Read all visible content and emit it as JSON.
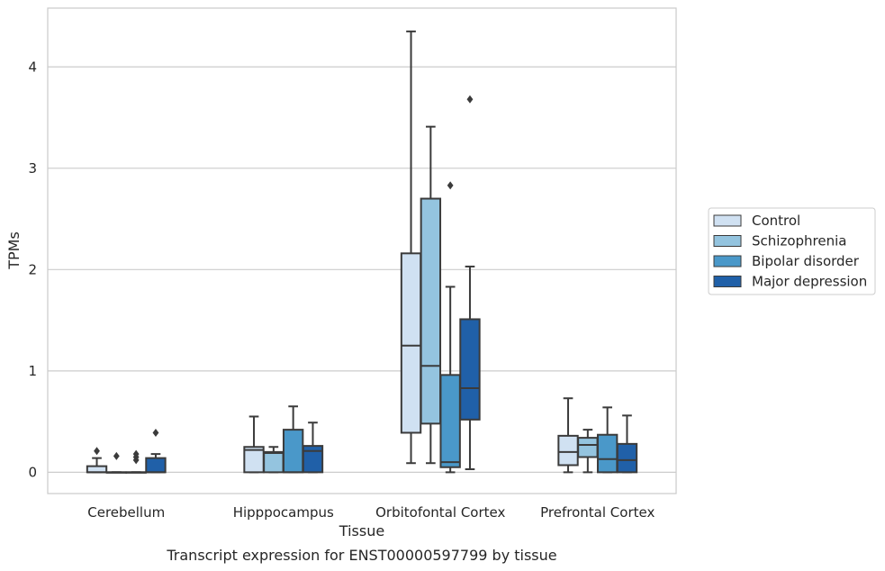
{
  "chart_data": {
    "type": "box",
    "caption": "Transcript expression for ENST00000597799 by tissue",
    "xlabel": "Tissue",
    "ylabel": "TPMs",
    "ylim": [
      -0.21,
      4.58
    ],
    "yticks": [
      0,
      1,
      2,
      3,
      4
    ],
    "grid": "horizontal",
    "legend_position": "right",
    "categories": [
      "Cerebellum",
      "Hipppocampus",
      "Orbitofontal Cortex",
      "Prefrontal Cortex"
    ],
    "series": [
      {
        "name": "Control",
        "color": "#d0e1f2",
        "boxes": [
          {
            "whislo": 0.0,
            "q1": 0.0,
            "med": 0.0,
            "q3": 0.06,
            "whishi": 0.14,
            "fliers": [
              0.21
            ]
          },
          {
            "whislo": 0.0,
            "q1": 0.0,
            "med": 0.22,
            "q3": 0.25,
            "whishi": 0.55,
            "fliers": []
          },
          {
            "whislo": 0.09,
            "q1": 0.39,
            "med": 1.25,
            "q3": 2.16,
            "whishi": 4.35,
            "fliers": []
          },
          {
            "whislo": 0.0,
            "q1": 0.07,
            "med": 0.2,
            "q3": 0.36,
            "whishi": 0.73,
            "fliers": []
          }
        ]
      },
      {
        "name": "Schizophrenia",
        "color": "#94c4df",
        "boxes": [
          {
            "whislo": 0.0,
            "q1": 0.0,
            "med": 0.0,
            "q3": 0.0,
            "whishi": 0.0,
            "fliers": [
              0.16
            ]
          },
          {
            "whislo": 0.0,
            "q1": 0.0,
            "med": 0.19,
            "q3": 0.2,
            "whishi": 0.25,
            "fliers": []
          },
          {
            "whislo": 0.09,
            "q1": 0.48,
            "med": 1.05,
            "q3": 2.7,
            "whishi": 3.41,
            "fliers": []
          },
          {
            "whislo": 0.0,
            "q1": 0.15,
            "med": 0.27,
            "q3": 0.34,
            "whishi": 0.42,
            "fliers": []
          }
        ]
      },
      {
        "name": "Bipolar disorder",
        "color": "#4a98c9",
        "boxes": [
          {
            "whislo": 0.0,
            "q1": 0.0,
            "med": 0.0,
            "q3": 0.0,
            "whishi": 0.0,
            "fliers": [
              0.12,
              0.15,
              0.18
            ]
          },
          {
            "whislo": 0.0,
            "q1": 0.0,
            "med": 0.0,
            "q3": 0.42,
            "whishi": 0.65,
            "fliers": []
          },
          {
            "whislo": 0.0,
            "q1": 0.05,
            "med": 0.1,
            "q3": 0.96,
            "whishi": 1.83,
            "fliers": [
              2.83
            ]
          },
          {
            "whislo": 0.0,
            "q1": 0.0,
            "med": 0.13,
            "q3": 0.37,
            "whishi": 0.64,
            "fliers": []
          }
        ]
      },
      {
        "name": "Major depression",
        "color": "#2060a8",
        "boxes": [
          {
            "whislo": 0.0,
            "q1": 0.0,
            "med": 0.0,
            "q3": 0.14,
            "whishi": 0.18,
            "fliers": [
              0.39
            ]
          },
          {
            "whislo": 0.0,
            "q1": 0.0,
            "med": 0.21,
            "q3": 0.26,
            "whishi": 0.49,
            "fliers": []
          },
          {
            "whislo": 0.03,
            "q1": 0.52,
            "med": 0.83,
            "q3": 1.51,
            "whishi": 2.03,
            "fliers": [
              3.68
            ]
          },
          {
            "whislo": 0.0,
            "q1": 0.0,
            "med": 0.12,
            "q3": 0.28,
            "whishi": 0.56,
            "fliers": []
          }
        ]
      }
    ]
  }
}
